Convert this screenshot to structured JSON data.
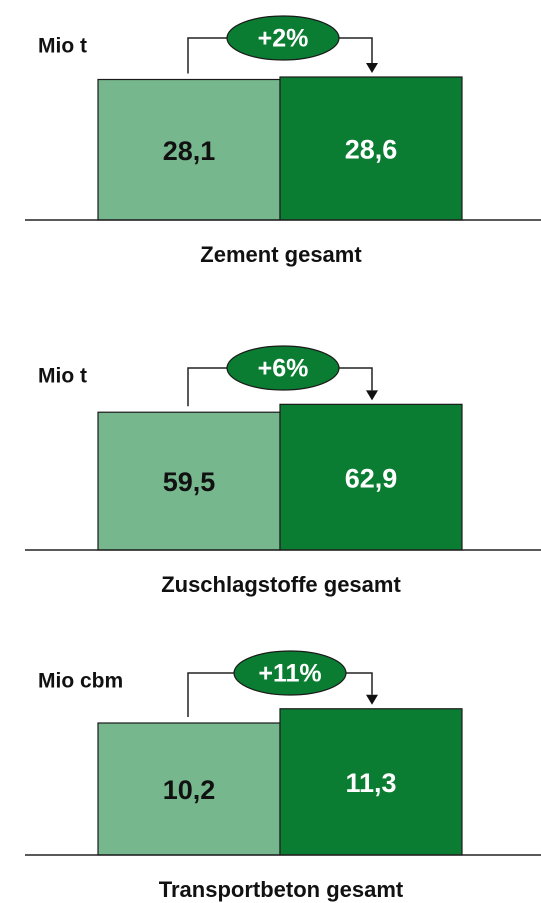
{
  "chart_data": [
    {
      "type": "bar",
      "title": "Zement gesamt",
      "y_label": "Mio t",
      "annotation": "+2%",
      "values": [
        28.1,
        28.6
      ],
      "value_labels": [
        "28,1",
        "28,6"
      ],
      "colors": [
        "#76b78e",
        "#0a7d32"
      ],
      "ylim": [
        0,
        44
      ]
    },
    {
      "type": "bar",
      "title": "Zuschlagstoffe gesamt",
      "y_label": "Mio t",
      "annotation": "+6%",
      "values": [
        59.5,
        62.9
      ],
      "value_labels": [
        "59,5",
        "62,9"
      ],
      "colors": [
        "#76b78e",
        "#0a7d32"
      ],
      "ylim": [
        0,
        95
      ]
    },
    {
      "type": "bar",
      "title": "Transportbeton gesamt",
      "y_label": "Mio cbm",
      "annotation": "+11%",
      "values": [
        10.2,
        11.3
      ],
      "value_labels": [
        "10,2",
        "11,3"
      ],
      "colors": [
        "#76b78e",
        "#0a7d32"
      ],
      "ylim": [
        0,
        17
      ]
    }
  ]
}
